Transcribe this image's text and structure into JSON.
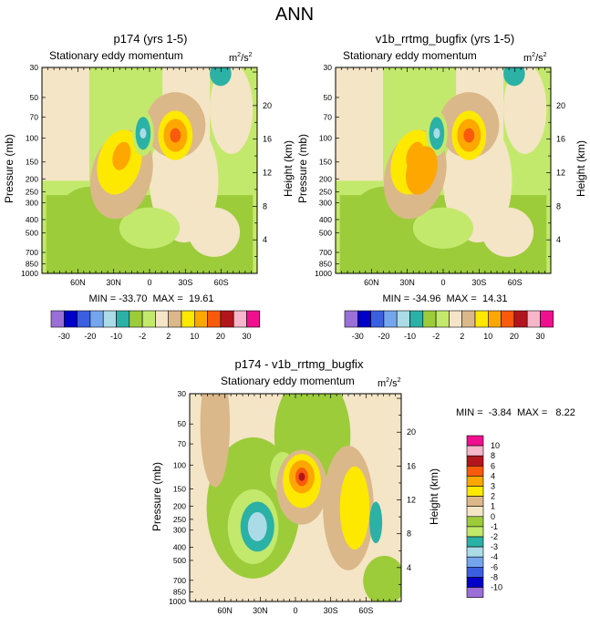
{
  "page_title": "ANN",
  "chart_data": [
    {
      "type": "heatmap",
      "title": "p174 (yrs 1-5)",
      "subtitle": "Stationary eddy momentum",
      "units": "m²/s²",
      "units_base": "m",
      "units_sup1": "2",
      "units_mid": "/s",
      "units_sup2": "2",
      "xlabel": "",
      "ylabel": "Pressure (mb)",
      "ylabel_right": "Height (km)",
      "x_ticks": [
        "60N",
        "30N",
        "0",
        "30S",
        "60S"
      ],
      "y_ticks": [
        "30",
        "50",
        "70",
        "100",
        "150",
        "200",
        "250",
        "300",
        "400",
        "500",
        "700",
        "850",
        "1000"
      ],
      "y_ticks_right": [
        "20",
        "16",
        "12",
        "8",
        "4"
      ],
      "min": -33.7,
      "max": 19.61,
      "stats_text": "MIN = -33.70  MAX =  19.61"
    },
    {
      "type": "heatmap",
      "title": "v1b_rrtmg_bugfix (yrs 1-5)",
      "subtitle": "Stationary eddy momentum",
      "units": "m²/s²",
      "units_base": "m",
      "units_sup1": "2",
      "units_mid": "/s",
      "units_sup2": "2",
      "xlabel": "",
      "ylabel": "Pressure (mb)",
      "ylabel_right": "Height (km)",
      "x_ticks": [
        "60N",
        "30N",
        "0",
        "30S",
        "60S"
      ],
      "y_ticks": [
        "30",
        "50",
        "70",
        "100",
        "150",
        "200",
        "250",
        "300",
        "400",
        "500",
        "700",
        "850",
        "1000"
      ],
      "y_ticks_right": [
        "20",
        "16",
        "12",
        "8",
        "4"
      ],
      "min": -34.96,
      "max": 14.31,
      "stats_text": "MIN = -34.96  MAX =  14.31"
    },
    {
      "type": "heatmap",
      "title": "p174 - v1b_rrtmg_bugfix",
      "subtitle": "Stationary eddy momentum",
      "units": "m²/s²",
      "units_base": "m",
      "units_sup1": "2",
      "units_mid": "/s",
      "units_sup2": "2",
      "xlabel": "",
      "ylabel": "Pressure (mb)",
      "ylabel_right": "Height (km)",
      "x_ticks": [
        "60N",
        "30N",
        "0",
        "30S",
        "60S"
      ],
      "y_ticks": [
        "30",
        "50",
        "70",
        "100",
        "150",
        "200",
        "250",
        "300",
        "400",
        "500",
        "700",
        "850",
        "1000"
      ],
      "y_ticks_right": [
        "20",
        "16",
        "12",
        "8",
        "4"
      ],
      "min": -3.84,
      "max": 8.22,
      "stats_text": "MIN =  -3.84  MAX =   8.22"
    }
  ],
  "colorbar_top": {
    "colors": [
      "#9a6fd8",
      "#0000c8",
      "#3a5fe0",
      "#74a6ee",
      "#acdbe8",
      "#2bb1a6",
      "#9ccc3a",
      "#c3e96c",
      "#f4e5c6",
      "#dbb889",
      "#fde800",
      "#fea700",
      "#f95a0c",
      "#b2161c",
      "#f7b6c9",
      "#f0108e"
    ],
    "labels": [
      "-30",
      "-20",
      "-10",
      "-2",
      "2",
      "10",
      "20",
      "30"
    ],
    "levels": [
      -30,
      -25,
      -20,
      -15,
      -10,
      -5,
      -2,
      0,
      2,
      5,
      10,
      15,
      20,
      25,
      30
    ]
  },
  "colorbar_diff": {
    "colors": [
      "#f0108e",
      "#f7b6c9",
      "#b2161c",
      "#f95a0c",
      "#fea700",
      "#fde800",
      "#dbb889",
      "#f4e5c6",
      "#9ccc3a",
      "#c3e96c",
      "#2bb1a6",
      "#acdbe8",
      "#74a6ee",
      "#3a5fe0",
      "#0000c8",
      "#9a6fd8"
    ],
    "labels": [
      "10",
      "8",
      "6",
      "4",
      "3",
      "2",
      "1",
      "0",
      "-1",
      "-2",
      "-3",
      "-4",
      "-6",
      "-8",
      "-10"
    ],
    "levels": [
      10,
      8,
      6,
      4,
      3,
      2,
      1,
      0,
      -1,
      -2,
      -3,
      -4,
      -6,
      -8,
      -10
    ]
  }
}
